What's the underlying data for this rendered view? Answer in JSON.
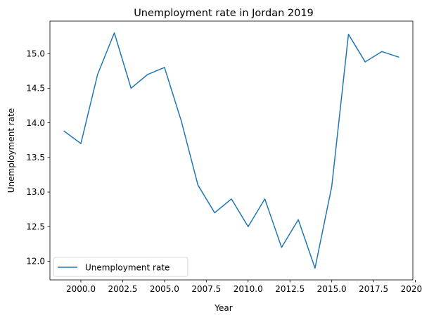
{
  "chart_data": {
    "type": "line",
    "title": "Unemployment rate in Jordan 2019",
    "xlabel": "Year",
    "ylabel": "Unemployment rate",
    "xlim": [
      1998.15,
      2019.85
    ],
    "ylim": [
      11.73,
      15.47
    ],
    "xticks": [
      2000.0,
      2002.5,
      2005.0,
      2007.5,
      2010.0,
      2012.5,
      2015.0,
      2017.5,
      2020.0
    ],
    "xtick_labels": [
      "2000.0",
      "2002.5",
      "2005.0",
      "2007.5",
      "2010.0",
      "2012.5",
      "2015.0",
      "2017.5",
      "2020.0"
    ],
    "yticks": [
      12.0,
      12.5,
      13.0,
      13.5,
      14.0,
      14.5,
      15.0
    ],
    "ytick_labels": [
      "12.0",
      "12.5",
      "13.0",
      "13.5",
      "14.0",
      "14.5",
      "15.0"
    ],
    "grid": false,
    "legend_position": "lower-left",
    "series": [
      {
        "name": "Unemployment rate",
        "color": "#1f77b4",
        "x": [
          1999,
          2000,
          2001,
          2002,
          2003,
          2004,
          2005,
          2006,
          2007,
          2008,
          2009,
          2010,
          2011,
          2012,
          2013,
          2014,
          2015,
          2016,
          2017,
          2018,
          2019
        ],
        "y": [
          13.88,
          13.7,
          14.7,
          15.3,
          14.5,
          14.7,
          14.8,
          14.03,
          13.1,
          12.7,
          12.9,
          12.5,
          12.9,
          12.2,
          12.6,
          11.9,
          13.08,
          15.28,
          14.88,
          15.03,
          14.95
        ]
      }
    ]
  }
}
